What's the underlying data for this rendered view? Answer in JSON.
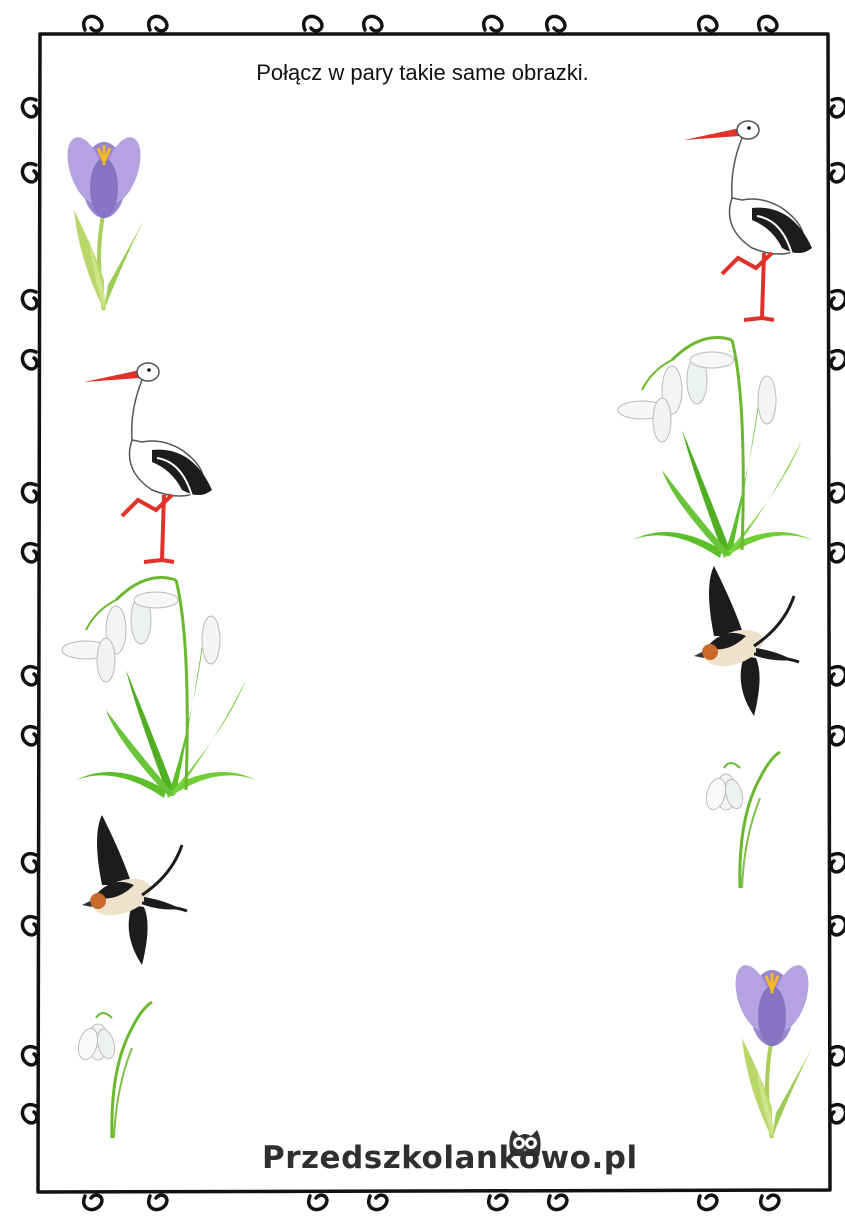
{
  "worksheet": {
    "instruction": "Połącz w pary takie same obrazki.",
    "left_column": [
      "crocus-icon",
      "stork-icon",
      "snowdrop-bunch-icon",
      "swallow-icon",
      "snowdrop-icon"
    ],
    "right_column": [
      "stork-icon",
      "snowdrop-bunch-icon",
      "swallow-icon",
      "snowdrop-icon",
      "crocus-icon"
    ]
  },
  "footer": {
    "brand": "Przedszkolankowo.pl"
  },
  "colors": {
    "frame": "#111111",
    "crocus": "#a893d4",
    "stork_beak": "#e0322a",
    "leaf": "#5bbf2a",
    "swallow_dark": "#1c1c1c"
  }
}
